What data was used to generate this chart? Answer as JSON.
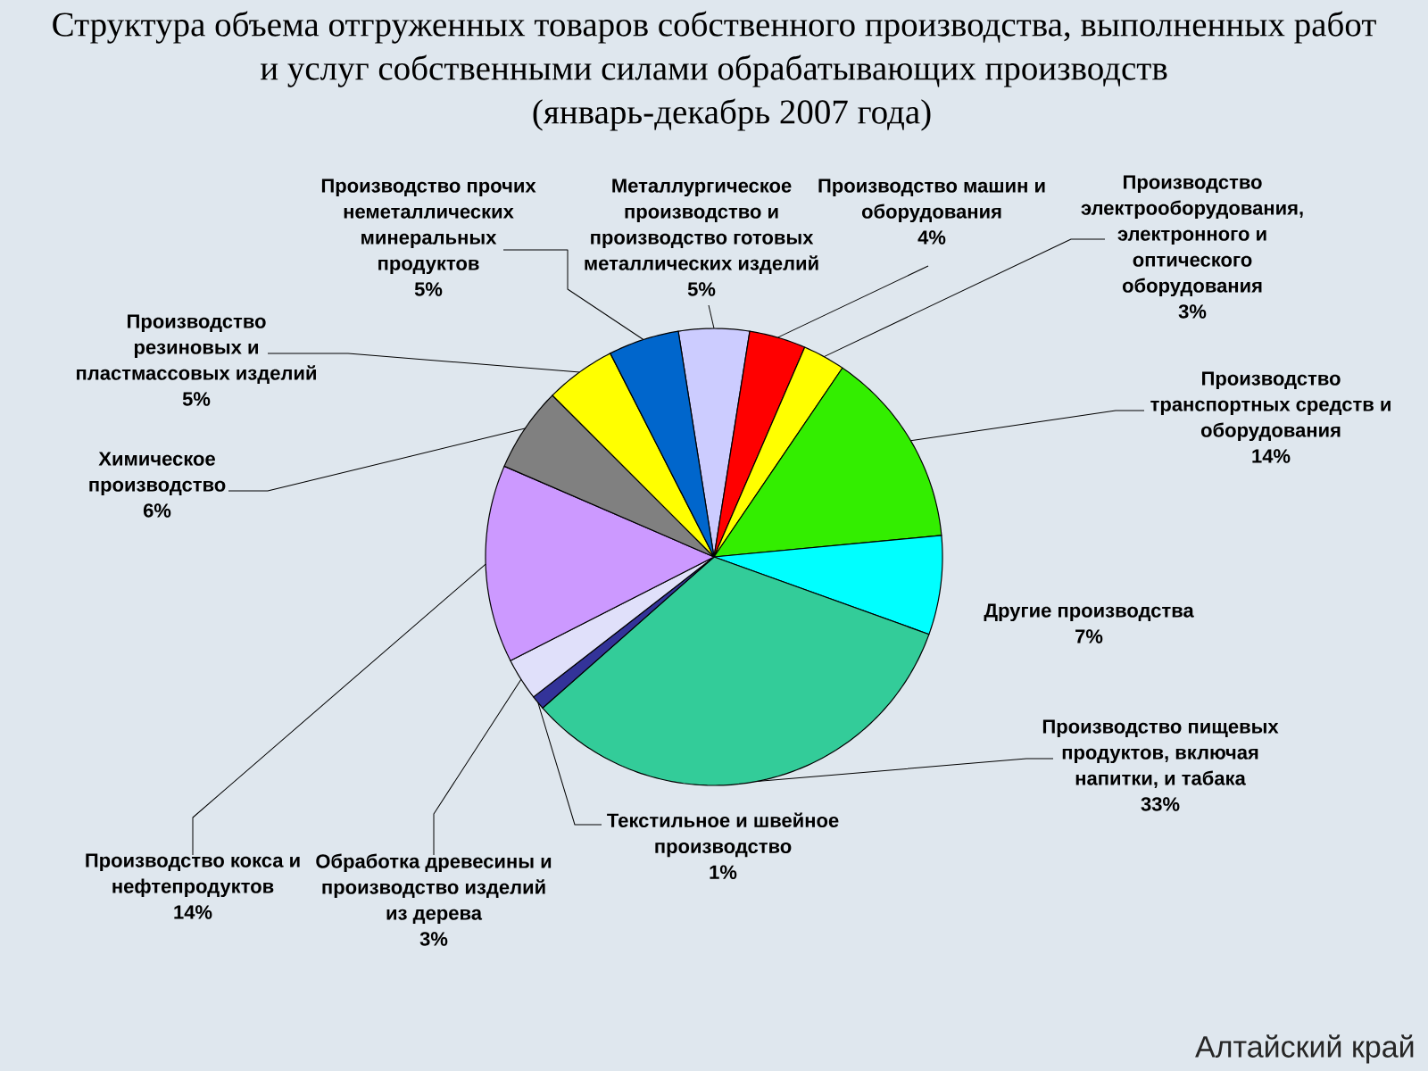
{
  "chart_data": {
    "type": "pie",
    "title": "Структура объема отгруженных товаров собственного производства, выполненных работ и услуг собственными силами обрабатывающих производств",
    "subtitle": "(январь-декабрь 2007 года)",
    "categories": [
      "Металлургическое производство и производство готовых металлических изделий",
      "Производство машин и оборудования",
      "Производство электрооборудования, электронного и оптического оборудования",
      "Производство транспортных средств и оборудования",
      "Другие производства",
      "Производство пищевых продуктов, включая напитки, и табака",
      "Текстильное и швейное производство",
      "Обработка древесины и производство изделий из дерева",
      "Производство кокса и нефтепродуктов",
      "Химическое производство",
      "Производство резиновых и пластмассовых изделий",
      "Производство прочих неметаллических минеральных продуктов"
    ],
    "values": [
      5,
      4,
      3,
      14,
      7,
      33,
      1,
      3,
      14,
      6,
      5,
      5
    ],
    "value_labels": [
      "5%",
      "4%",
      "3%",
      "14%",
      "7%",
      "33%",
      "1%",
      "3%",
      "14%",
      "6%",
      "5%",
      "5%"
    ],
    "colors": [
      "#ccccff",
      "#ff0000",
      "#ffff00",
      "#33ee00",
      "#00ffff",
      "#33cc99",
      "#333399",
      "#e0e0fa",
      "#cc99ff",
      "#808080",
      "#ffff00",
      "#0066cc"
    ],
    "annotations": [
      "Алтайский край"
    ]
  }
}
